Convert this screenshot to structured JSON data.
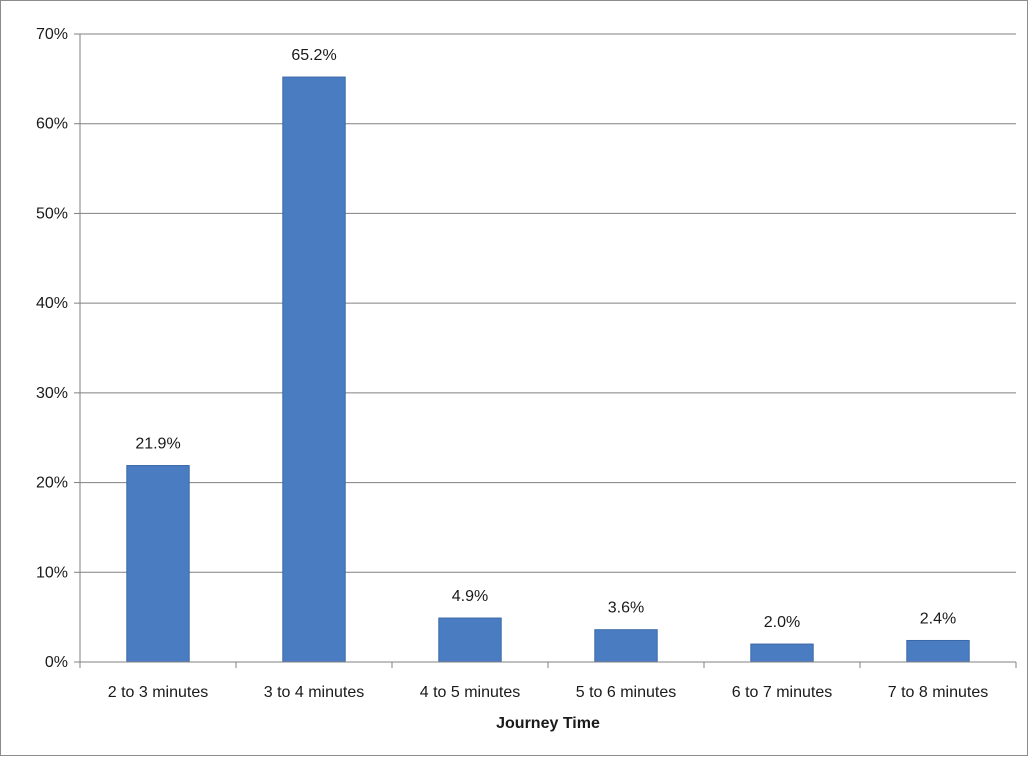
{
  "chart_data": {
    "type": "bar",
    "title": "",
    "xlabel": "Journey Time",
    "ylabel": "",
    "categories": [
      "2 to 3 minutes",
      "3 to 4 minutes",
      "4 to 5 minutes",
      "5 to 6 minutes",
      "6 to 7 minutes",
      "7 to 8 minutes"
    ],
    "values": [
      21.9,
      65.2,
      4.9,
      3.6,
      2.0,
      2.4
    ],
    "data_labels": [
      "21.9%",
      "65.2%",
      "4.9%",
      "3.6%",
      "2.0%",
      "2.4%"
    ],
    "ylim": [
      0,
      70
    ],
    "yticks": [
      0,
      10,
      20,
      30,
      40,
      50,
      60,
      70
    ],
    "ytick_labels": [
      "0%",
      "10%",
      "20%",
      "30%",
      "40%",
      "50%",
      "60%",
      "70%"
    ],
    "grid": true,
    "legend": "none",
    "bar_color": "#4a7cc2",
    "bar_edge_color": "#3b68a8",
    "grid_color": "#808080",
    "axis_color": "#808080"
  }
}
